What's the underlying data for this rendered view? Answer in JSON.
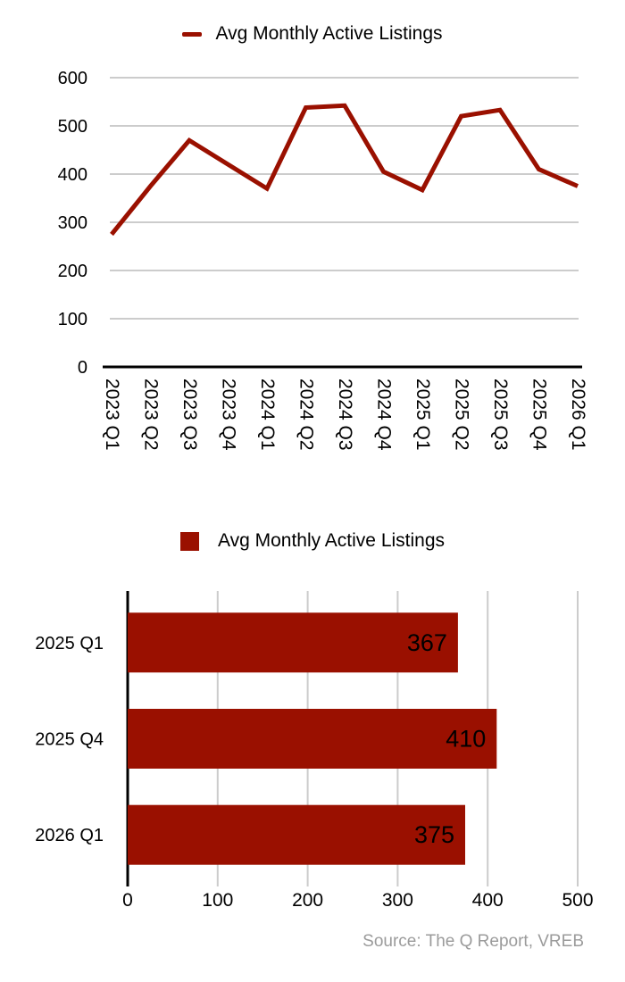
{
  "source_note": "Source: The Q Report, VREB",
  "colors": {
    "series_red": "#9A1000",
    "gridline": "#cccccc",
    "axis": "#000000",
    "bar_value_label": "#ffffff",
    "source_text": "#9b9b9b"
  },
  "chart_data": [
    {
      "type": "line",
      "legend": [
        "Avg Monthly Active Listings"
      ],
      "legend_position": "top",
      "grid": true,
      "categories": [
        "2023 Q1",
        "2023 Q2",
        "2023 Q3",
        "2023 Q4",
        "2024 Q1",
        "2024 Q2",
        "2024 Q3",
        "2024 Q4",
        "2025 Q1",
        "2025 Q2",
        "2025 Q3",
        "2025 Q4",
        "2026 Q1"
      ],
      "values": [
        275,
        375,
        470,
        420,
        370,
        538,
        542,
        405,
        367,
        520,
        533,
        410,
        375
      ],
      "ylim": [
        0,
        600
      ],
      "yticks": [
        0,
        100,
        200,
        300,
        400,
        500,
        600
      ],
      "xlabel": "",
      "ylabel": "",
      "title": ""
    },
    {
      "type": "bar",
      "orientation": "horizontal",
      "legend": [
        "Avg Monthly Active Listings"
      ],
      "legend_position": "top",
      "grid": true,
      "categories": [
        "2025 Q1",
        "2025 Q4",
        "2026 Q1"
      ],
      "values": [
        367,
        410,
        375
      ],
      "data_labels": [
        "367",
        "410",
        "375"
      ],
      "xlim": [
        0,
        500
      ],
      "xticks": [
        0,
        100,
        200,
        300,
        400,
        500
      ],
      "xlabel": "",
      "ylabel": "",
      "title": ""
    }
  ]
}
